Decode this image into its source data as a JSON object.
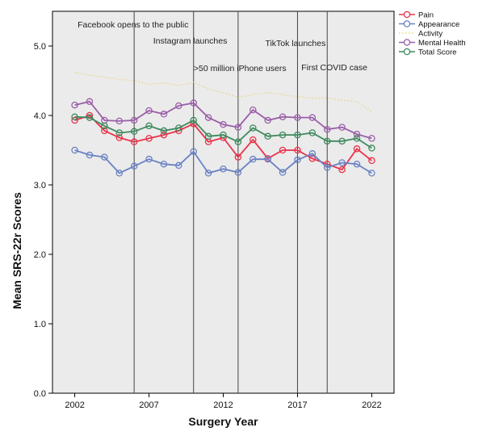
{
  "chart_data": {
    "type": "line",
    "title": "",
    "xlabel": "Surgery Year",
    "ylabel": "Mean SRS-22r Scores",
    "xlim": [
      2000.5,
      2023.5
    ],
    "ylim": [
      0.0,
      5.5
    ],
    "x_ticks": [
      2002,
      2007,
      2012,
      2017,
      2022
    ],
    "y_ticks": [
      0.0,
      1.0,
      2.0,
      3.0,
      4.0,
      5.0
    ],
    "x_tick_labels": [
      "2002",
      "2007",
      "2012",
      "2017",
      "2022"
    ],
    "y_tick_labels": [
      "0.0",
      "1.0",
      "2.0",
      "3.0",
      "4.0",
      "5.0"
    ],
    "grid": false,
    "legend_position": "top-right, outside plot",
    "plot_background": "#ebebeb",
    "x": [
      2002,
      2003,
      2004,
      2005,
      2006,
      2007,
      2008,
      2009,
      2010,
      2011,
      2012,
      2013,
      2014,
      2015,
      2016,
      2017,
      2018,
      2019,
      2020,
      2021,
      2022
    ],
    "series": [
      {
        "name": "Pain",
        "color": "#e8334a",
        "style": "line-markers",
        "values": [
          3.93,
          4.0,
          3.78,
          3.68,
          3.62,
          3.67,
          3.72,
          3.78,
          3.88,
          3.62,
          3.68,
          3.4,
          3.65,
          3.38,
          3.5,
          3.5,
          3.38,
          3.3,
          3.22,
          3.52,
          3.35
        ]
      },
      {
        "name": "Appearance",
        "color": "#6a82c4",
        "style": "line-markers",
        "values": [
          3.5,
          3.43,
          3.4,
          3.17,
          3.27,
          3.37,
          3.3,
          3.28,
          3.48,
          3.17,
          3.23,
          3.18,
          3.37,
          3.37,
          3.18,
          3.36,
          3.45,
          3.25,
          3.32,
          3.3,
          3.17
        ]
      },
      {
        "name": "Activity",
        "color": "#e8d48a",
        "style": "dotted",
        "values": [
          4.62,
          4.58,
          4.55,
          4.52,
          4.5,
          4.45,
          4.47,
          4.43,
          4.48,
          4.38,
          4.33,
          4.26,
          4.3,
          4.33,
          4.3,
          4.27,
          4.25,
          4.25,
          4.22,
          4.2,
          4.05
        ]
      },
      {
        "name": "Mental Health",
        "color": "#9a5fa8",
        "style": "line-markers",
        "values": [
          4.15,
          4.2,
          3.93,
          3.92,
          3.93,
          4.07,
          4.02,
          4.14,
          4.18,
          3.97,
          3.87,
          3.83,
          4.08,
          3.93,
          3.98,
          3.97,
          3.97,
          3.8,
          3.83,
          3.73,
          3.67
        ]
      },
      {
        "name": "Total Score",
        "color": "#3e8a5e",
        "style": "line-markers",
        "values": [
          3.98,
          3.97,
          3.85,
          3.75,
          3.77,
          3.85,
          3.78,
          3.82,
          3.93,
          3.7,
          3.72,
          3.62,
          3.82,
          3.7,
          3.72,
          3.72,
          3.75,
          3.63,
          3.63,
          3.67,
          3.53
        ]
      }
    ],
    "annotations": [
      {
        "label": "Facebook opens to the public",
        "x": 2006
      },
      {
        "label": "Instagram launches",
        "x": 2010
      },
      {
        "label": ">50 million  iPhone  users",
        "x": 2013
      },
      {
        "label": "TikTok launches",
        "x": 2017
      },
      {
        "label": "First COVID case",
        "x": 2019
      }
    ]
  }
}
